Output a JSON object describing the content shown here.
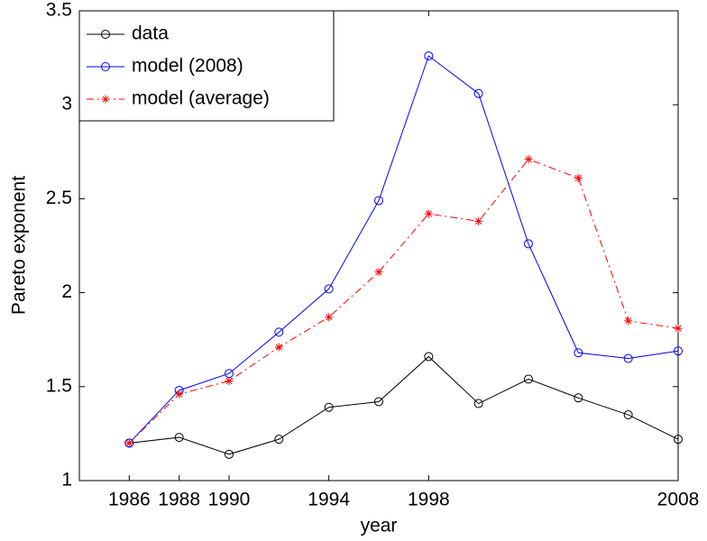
{
  "chart_data": {
    "type": "line",
    "x_label": "year",
    "y_label": "Pareto exponent",
    "x": [
      1986,
      1988,
      1990,
      1992,
      1994,
      1996,
      1998,
      2000,
      2002,
      2004,
      2006,
      2008
    ],
    "series": [
      {
        "name": "data",
        "color": "#000000",
        "marker": "circle",
        "dash": "solid",
        "values": [
          1.2,
          1.23,
          1.14,
          1.22,
          1.39,
          1.42,
          1.66,
          1.41,
          1.54,
          1.44,
          1.35,
          1.22
        ]
      },
      {
        "name": "model (2008)",
        "color": "#0000ff",
        "marker": "circle",
        "dash": "solid",
        "values": [
          1.2,
          1.48,
          1.57,
          1.79,
          2.02,
          2.49,
          3.26,
          3.06,
          2.26,
          1.68,
          1.65,
          1.69
        ]
      },
      {
        "name": "model (average)",
        "color": "#ff0000",
        "marker": "asterisk",
        "dash": "dashdot",
        "values": [
          1.2,
          1.46,
          1.53,
          1.71,
          1.87,
          2.11,
          2.42,
          2.38,
          2.71,
          2.61,
          1.85,
          1.81
        ]
      }
    ],
    "xlim": [
      1984,
      2008
    ],
    "xticks": [
      1986,
      1988,
      1990,
      1994,
      1998,
      2008
    ],
    "ylim": [
      1,
      3.5
    ],
    "yticks": [
      1,
      1.5,
      2,
      2.5,
      3,
      3.5
    ],
    "grid": false,
    "legend": "upper left"
  }
}
